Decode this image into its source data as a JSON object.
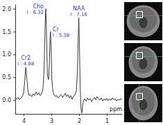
{
  "chart_data": {
    "type": "line",
    "x_label": "ppm",
    "x": [
      4.3,
      4.25,
      4.2,
      4.15,
      4.1,
      4.05,
      4.0,
      3.96,
      3.92,
      3.88,
      3.84,
      3.8,
      3.75,
      3.7,
      3.65,
      3.6,
      3.55,
      3.5,
      3.45,
      3.4,
      3.35,
      3.3,
      3.26,
      3.22,
      3.2,
      3.18,
      3.14,
      3.1,
      3.07,
      3.05,
      3.03,
      3.01,
      2.98,
      2.94,
      2.9,
      2.85,
      2.8,
      2.75,
      2.7,
      2.65,
      2.6,
      2.55,
      2.5,
      2.45,
      2.4,
      2.35,
      2.3,
      2.25,
      2.2,
      2.15,
      2.1,
      2.06,
      2.03,
      2.01,
      1.99,
      1.96,
      1.93,
      1.9,
      1.86,
      1.8,
      1.75,
      1.7,
      1.65,
      1.6,
      1.55,
      1.5,
      1.45,
      1.4,
      1.35,
      1.3,
      1.25,
      1.2,
      1.15,
      1.1,
      1.05,
      1.0,
      0.95,
      0.9,
      0.85,
      0.8,
      0.75,
      0.7,
      0.65,
      0.6,
      0.55,
      0.5,
      0.45
    ],
    "values": [
      0.05,
      0.02,
      0.06,
      0.01,
      0.04,
      0.08,
      0.15,
      0.4,
      0.72,
      0.45,
      0.2,
      0.1,
      0.12,
      0.08,
      0.14,
      0.1,
      0.18,
      0.12,
      0.16,
      0.1,
      0.14,
      0.25,
      0.7,
      1.7,
      2.0,
      1.6,
      0.55,
      0.45,
      0.8,
      1.3,
      1.5,
      1.2,
      0.45,
      0.18,
      0.12,
      0.08,
      0.1,
      0.05,
      0.09,
      0.12,
      0.06,
      0.1,
      0.15,
      0.08,
      0.12,
      0.05,
      0.1,
      0.02,
      0.08,
      0.12,
      0.2,
      0.6,
      1.4,
      1.8,
      1.3,
      0.3,
      -0.2,
      -0.28,
      -0.05,
      0.03,
      -0.02,
      0.05,
      0.0,
      0.04,
      -0.03,
      0.02,
      0.06,
      0.01,
      0.08,
      0.03,
      0.0,
      0.05,
      -0.02,
      0.03,
      0.0,
      0.04,
      -0.01,
      0.03,
      0.0,
      0.05,
      0.01,
      0.03,
      -0.02,
      0.02,
      0.0,
      0.03,
      0.01
    ],
    "color": "#222222",
    "xlim": [
      4.3,
      0.45
    ],
    "xticks": [
      4,
      3,
      2,
      1
    ],
    "ylim": [
      -0.3,
      2.1
    ],
    "yticks": [
      {
        "value": 0,
        "label": "0.0"
      },
      0.5,
      {
        "value": 1,
        "label": "1.0"
      },
      1.5,
      {
        "value": 2,
        "label": "2.0"
      }
    ],
    "grid": false,
    "annotations": [
      {
        "label": "Cr2",
        "text": "I : 4.88",
        "x": 3.92,
        "y": 0.72
      },
      {
        "label": "Cho",
        "text": "I : 6.32",
        "x": 3.2,
        "y": 2.0
      },
      {
        "label": "Cr",
        "text": "I : 5.38",
        "x": 3.03,
        "y": 1.5
      },
      {
        "label": "NAA",
        "text": "I : 7.16",
        "x": 2.01,
        "y": 1.8
      }
    ]
  }
}
